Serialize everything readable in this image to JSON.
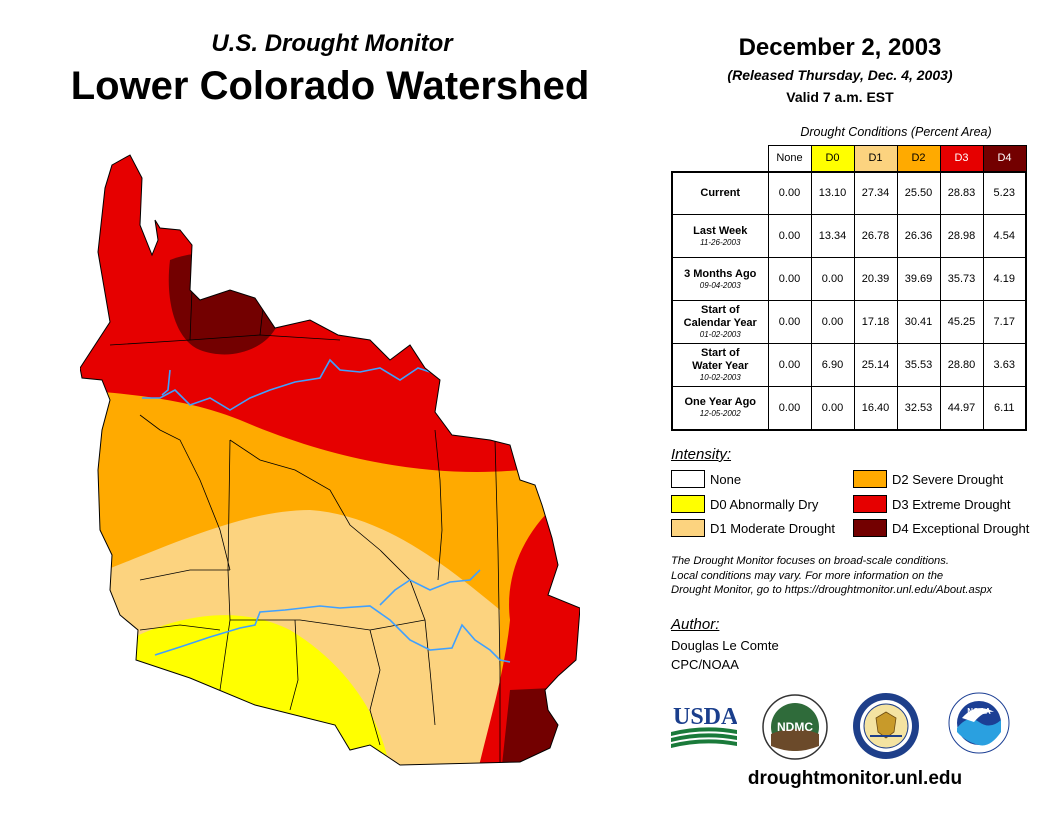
{
  "header": {
    "subtitle": "U.S. Drought Monitor",
    "title": "Lower Colorado Watershed",
    "date": "December 2, 2003",
    "released": "(Released Thursday, Dec. 4, 2003)",
    "valid": "Valid 7 a.m. EST"
  },
  "table": {
    "caption": "Drought Conditions (Percent Area)",
    "columns": [
      "None",
      "D0",
      "D1",
      "D2",
      "D3",
      "D4"
    ],
    "rows": [
      {
        "label": "Current",
        "label2": "",
        "date": "",
        "values": [
          "0.00",
          "13.10",
          "27.34",
          "25.50",
          "28.83",
          "5.23"
        ]
      },
      {
        "label": "Last Week",
        "label2": "",
        "date": "11-26-2003",
        "values": [
          "0.00",
          "13.34",
          "26.78",
          "26.36",
          "28.98",
          "4.54"
        ]
      },
      {
        "label": "3 Months Ago",
        "label2": "",
        "date": "09-04-2003",
        "values": [
          "0.00",
          "0.00",
          "20.39",
          "39.69",
          "35.73",
          "4.19"
        ]
      },
      {
        "label": "Start of",
        "label2": "Calendar Year",
        "date": "01-02-2003",
        "values": [
          "0.00",
          "0.00",
          "17.18",
          "30.41",
          "45.25",
          "7.17"
        ]
      },
      {
        "label": "Start of",
        "label2": "Water Year",
        "date": "10-02-2003",
        "values": [
          "0.00",
          "6.90",
          "25.14",
          "35.53",
          "28.80",
          "3.63"
        ]
      },
      {
        "label": "One Year Ago",
        "label2": "",
        "date": "12-05-2002",
        "values": [
          "0.00",
          "0.00",
          "16.40",
          "32.53",
          "44.97",
          "6.11"
        ]
      }
    ]
  },
  "legend": {
    "title": "Intensity:",
    "items": [
      {
        "label": "None",
        "color": "#ffffff"
      },
      {
        "label": "D0 Abnormally Dry",
        "color": "#ffff00"
      },
      {
        "label": "D1 Moderate Drought",
        "color": "#fcd37f"
      },
      {
        "label": "D2 Severe Drought",
        "color": "#ffaa00"
      },
      {
        "label": "D3 Extreme Drought",
        "color": "#e60000"
      },
      {
        "label": "D4 Exceptional Drought",
        "color": "#730000"
      }
    ]
  },
  "note": [
    "The Drought Monitor focuses on broad-scale conditions.",
    "Local conditions may vary. For more information on the",
    "Drought Monitor, go to https://droughtmonitor.unl.edu/About.aspx"
  ],
  "author": {
    "title": "Author:",
    "name": "Douglas Le Comte",
    "org": "CPC/NOAA"
  },
  "logos": {
    "usda": "USDA",
    "ndmc": "NDMC",
    "noaa": "NOAA"
  },
  "footer_url": "droughtmonitor.unl.edu",
  "colors": {
    "none": "#ffffff",
    "d0": "#ffff00",
    "d1": "#fcd37f",
    "d2": "#ffaa00",
    "d3": "#e60000",
    "d4": "#730000",
    "river": "#3fa0ff"
  }
}
